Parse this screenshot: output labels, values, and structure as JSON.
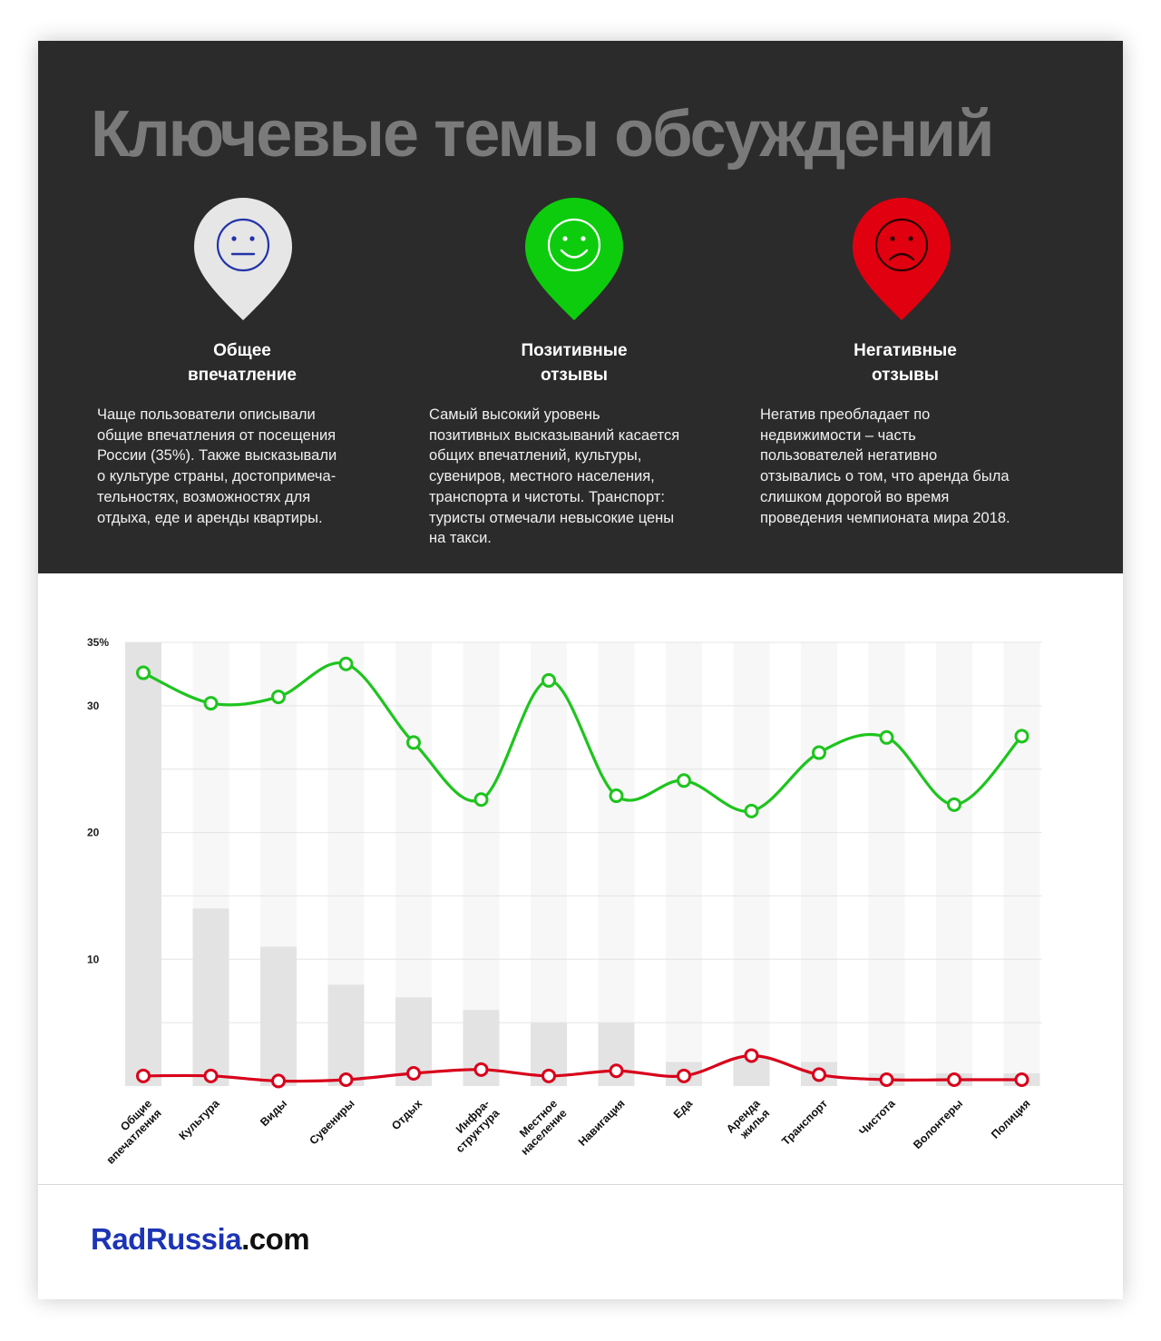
{
  "header": {
    "title": "Ключевые темы обсуждений"
  },
  "columns": [
    {
      "icon": "neutral-face-icon",
      "color": "#e6e6e6",
      "face_color": "#2233aa",
      "heading_lines": [
        "Общее",
        "впечатление"
      ],
      "text_lines": [
        "Чаще пользователи описывали",
        "общие впечатления от посещения",
        "России (35%). Также высказывали",
        "о культуре страны, достопримеча-",
        "тельностях, возможностях для",
        "отдыха, еде и аренды квартиры."
      ]
    },
    {
      "icon": "happy-face-icon",
      "color": "#0dcc0d",
      "face_color": "#ffffff",
      "heading_lines": [
        "Позитивные",
        "отзывы"
      ],
      "text_lines": [
        "Самый высокий уровень",
        "позитивных высказываний касается",
        "общих впечатлений, культуры,",
        "сувениров, местного населения,",
        "транспорта и чистоты. Транспорт:",
        "туристы отмечали невысокие цены",
        "на такси."
      ]
    },
    {
      "icon": "sad-face-icon",
      "color": "#e0000f",
      "face_color": "#2b0000",
      "heading_lines": [
        "Негативные",
        "отзывы"
      ],
      "text_lines": [
        "Негатив преобладает по",
        "недвижимости – часть",
        "пользователей негативно",
        "отзывались о том, что аренда была",
        "слишком дорогой во время",
        "проведения чемпионата мира 2018."
      ]
    }
  ],
  "chart_data": {
    "type": "line",
    "categories": [
      [
        "Общие",
        "впечатления"
      ],
      [
        "Культура"
      ],
      [
        "Виды"
      ],
      [
        "Сувениры"
      ],
      [
        "Отдых"
      ],
      [
        "Инфра-",
        "структура"
      ],
      [
        "Местное",
        "население"
      ],
      [
        "Навигация"
      ],
      [
        "Еда"
      ],
      [
        "Аренда",
        "жилья"
      ],
      [
        "Транспорт"
      ],
      [
        "Чистота"
      ],
      [
        "Волонтеры"
      ],
      [
        "Полиция"
      ]
    ],
    "y_ticks": [
      "35%",
      "30",
      "20",
      "10"
    ],
    "y_tick_values": [
      35,
      30,
      20,
      10
    ],
    "ylim": [
      0,
      35
    ],
    "grid": true,
    "series": [
      {
        "role": "bars",
        "color": "#e3e3e3",
        "values": [
          35,
          14,
          11,
          8,
          7,
          6,
          5,
          5,
          1.9,
          2.3,
          1.9,
          1.0,
          1.0,
          1.0
        ]
      },
      {
        "role": "positive",
        "color": "#1ec41e",
        "values": [
          32.6,
          30.2,
          30.7,
          33.3,
          27.1,
          22.6,
          32.0,
          22.9,
          24.1,
          21.7,
          26.3,
          27.5,
          22.2,
          27.6
        ]
      },
      {
        "role": "negative",
        "color": "#d8001a",
        "values": [
          0.8,
          0.8,
          0.4,
          0.5,
          1.0,
          1.3,
          0.8,
          1.2,
          0.8,
          2.4,
          0.9,
          0.5,
          0.5,
          0.5
        ]
      }
    ]
  },
  "footer": {
    "brand_main": "RadRussia",
    "brand_suffix": ".com"
  }
}
